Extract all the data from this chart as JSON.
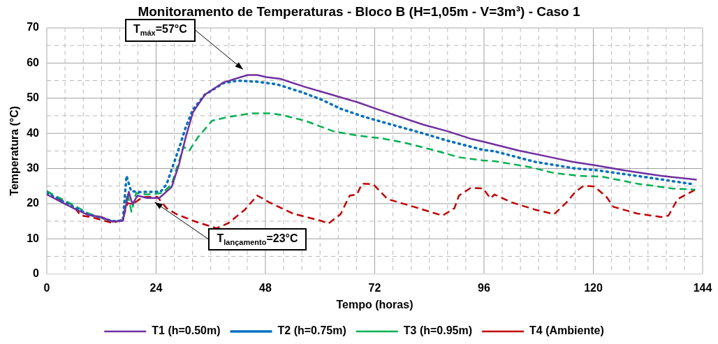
{
  "chart_data": {
    "type": "line",
    "title": "Monitoramento  de Temperaturas - Bloco B (H=1,05m - V=3m³) - Caso 1",
    "xlabel": "Tempo (horas)",
    "ylabel": "Temperatura (°C)",
    "xlim": [
      0,
      144
    ],
    "ylim": [
      0,
      70
    ],
    "xticks": [
      0,
      {
        "value": 4,
        "label": null
      },
      {
        "value": 8,
        "label": null
      },
      {
        "value": 12,
        "label": null
      },
      {
        "value": 16,
        "label": null
      },
      {
        "value": 20,
        "label": null
      },
      24,
      {
        "value": 28,
        "label": null
      },
      {
        "value": 32,
        "label": null
      },
      {
        "value": 36,
        "label": null
      },
      {
        "value": 40,
        "label": null
      },
      {
        "value": 44,
        "label": null
      },
      48,
      {
        "value": 52,
        "label": null
      },
      {
        "value": 56,
        "label": null
      },
      {
        "value": 60,
        "label": null
      },
      {
        "value": 64,
        "label": null
      },
      {
        "value": 68,
        "label": null
      },
      72,
      {
        "value": 76,
        "label": null
      },
      {
        "value": 80,
        "label": null
      },
      {
        "value": 84,
        "label": null
      },
      {
        "value": 88,
        "label": null
      },
      {
        "value": 92,
        "label": null
      },
      96,
      {
        "value": 100,
        "label": null
      },
      {
        "value": 104,
        "label": null
      },
      {
        "value": 108,
        "label": null
      },
      {
        "value": 112,
        "label": null
      },
      {
        "value": 116,
        "label": null
      },
      120,
      {
        "value": 124,
        "label": null
      },
      {
        "value": 128,
        "label": null
      },
      {
        "value": 132,
        "label": null
      },
      {
        "value": 136,
        "label": null
      },
      {
        "value": 140,
        "label": null
      },
      144
    ],
    "yticks": [
      0,
      {
        "value": 5,
        "label": null
      },
      10,
      {
        "value": 15,
        "label": null
      },
      20,
      {
        "value": 25,
        "label": null
      },
      30,
      {
        "value": 35,
        "label": null
      },
      40,
      {
        "value": 45,
        "label": null
      },
      50,
      {
        "value": 55,
        "label": null
      },
      60,
      {
        "value": 65,
        "label": null
      },
      70
    ],
    "grid": true,
    "legend": "bottom",
    "marker": "none",
    "annotations": [
      {
        "text": "T$_{máx}$=57°C",
        "x": 44,
        "y": 57
      },
      {
        "text": "T$_{lançamento}$=23°C",
        "x": 24,
        "y": 22
      }
    ],
    "series": [
      {
        "name": "T1 (h=0.50m)",
        "color": "#7030a0",
        "line_style": "solid",
        "x": [
          0,
          3,
          6,
          9,
          12,
          14.4,
          16.7,
          18,
          18.8,
          19.9,
          22,
          24.7,
          27.4,
          29,
          30.5,
          32.1,
          34.7,
          38.8,
          44.1,
          46.2,
          48.2,
          51.3,
          56.7,
          61.8,
          68.1,
          72.3,
          77.5,
          82.6,
          88,
          93,
          96.3,
          103.6,
          111.4,
          115.5,
          120.5,
          127.1,
          134.9,
          142.7
        ],
        "values": [
          22.6,
          20.6,
          18.6,
          16.8,
          16.2,
          14.9,
          15.1,
          23.4,
          19.8,
          22.3,
          21.6,
          21.6,
          24.7,
          31,
          38.9,
          46,
          51,
          54.5,
          56.6,
          56.6,
          56,
          55.5,
          53.2,
          51.3,
          48.9,
          47,
          44.7,
          42.5,
          40.6,
          38.5,
          37.5,
          35.1,
          33,
          31.9,
          30.9,
          29.4,
          27.9,
          26.8
        ]
      },
      {
        "name": "T2 (h=0.75m)",
        "color": "#0070c0",
        "line_style": "dotted",
        "x": [
          0,
          3,
          6,
          9,
          12,
          14.4,
          16.7,
          17.5,
          18.5,
          20,
          25,
          26.3,
          29.3,
          30.5,
          32.1,
          34.7,
          38.8,
          41.9,
          46.2,
          50.4,
          56,
          60.3,
          64.5,
          69.7,
          75.4,
          82.6,
          88,
          95.8,
          98.3,
          107.2,
          116.1,
          120.2,
          129.6,
          142.1
        ],
        "values": [
          23,
          21,
          19,
          17,
          16,
          15,
          15.2,
          27.9,
          23.6,
          23.3,
          23.4,
          25.5,
          36.8,
          41.7,
          46.8,
          51,
          54.3,
          55,
          54.7,
          54,
          51.7,
          49.6,
          47,
          44.7,
          42.6,
          40,
          37.9,
          35.3,
          34.9,
          31.9,
          30,
          29.6,
          27.9,
          25.5
        ]
      },
      {
        "name": "T3 (h=0.95m)",
        "color": "#00b050",
        "line_style": "dashed",
        "x": [
          0,
          3,
          6,
          9,
          12,
          14.4,
          16.7,
          17.7,
          18.6,
          19.6,
          22,
          25.4,
          27.4,
          29,
          30,
          31.3,
          33.2,
          36.3,
          39.9,
          45.1,
          48.8,
          51.3,
          56.7,
          62.9,
          68.1,
          73.9,
          79,
          85.3,
          90.5,
          95.8,
          98.3,
          106.1,
          111.4,
          117.1,
          121.8,
          129.6,
          137.4,
          142.4
        ],
        "values": [
          23.5,
          21.5,
          19.5,
          17.3,
          16,
          15,
          15.2,
          23,
          17.7,
          23,
          22.6,
          23,
          25.5,
          31.9,
          36.2,
          35.1,
          38.9,
          43.6,
          44.7,
          45.7,
          45.7,
          45.3,
          43.6,
          40.6,
          39.4,
          38.5,
          37.2,
          35.1,
          33.2,
          32.3,
          32.1,
          30.4,
          28.7,
          27.9,
          27.7,
          25.7,
          24.3,
          24
        ]
      },
      {
        "name": "T4 (Ambiente)",
        "color": "#c00000",
        "line_style": "dashed",
        "x": [
          0,
          3.9,
          5.5,
          7.5,
          9.7,
          14.4,
          16.7,
          17.7,
          18.8,
          21.1,
          24.3,
          26.3,
          28.5,
          32.6,
          37.3,
          39.9,
          43.5,
          46.2,
          48.8,
          54,
          60.3,
          61.8,
          64.5,
          66.5,
          68.1,
          69.2,
          71.7,
          74.8,
          80.6,
          86.9,
          89.5,
          90.5,
          93.1,
          95.8,
          97.4,
          98.3,
          102,
          107.2,
          111.4,
          114,
          116.1,
          117.9,
          120.2,
          122.9,
          124.4,
          129.6,
          134.9,
          136.5,
          138.5,
          142.4
        ],
        "values": [
          23.6,
          20.4,
          19.8,
          16.6,
          16.2,
          14.5,
          15.5,
          20.2,
          19.8,
          21.9,
          21.9,
          18.7,
          17,
          14.9,
          13,
          14.5,
          18.3,
          22.3,
          20.4,
          17.2,
          15.1,
          14.3,
          17,
          22.3,
          22.6,
          25.7,
          25.5,
          21.3,
          19.1,
          16.6,
          18.7,
          22.3,
          24.5,
          24.3,
          21.5,
          22.6,
          20.4,
          18.3,
          17,
          20.2,
          23.4,
          25.1,
          24.9,
          21.9,
          19.1,
          17.2,
          16.2,
          16.6,
          21.3,
          24
        ]
      }
    ]
  }
}
